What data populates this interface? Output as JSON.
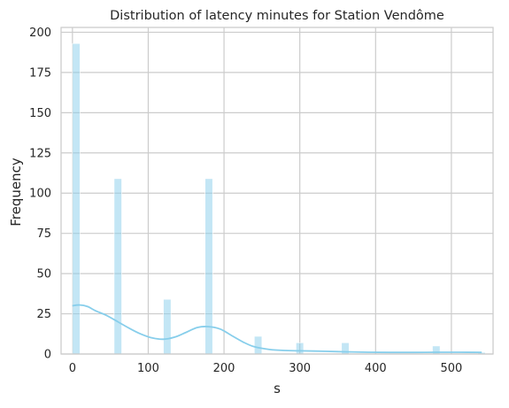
{
  "chart_data": {
    "type": "bar",
    "title": "Distribution of latency minutes for Station Vendôme",
    "xlabel": "s",
    "ylabel": "Frequency",
    "xlim": [
      -15,
      555
    ],
    "ylim": [
      0,
      203
    ],
    "xticks": [
      0,
      100,
      200,
      300,
      400,
      500
    ],
    "yticks": [
      0,
      25,
      50,
      75,
      100,
      125,
      150,
      175,
      200
    ],
    "grid": true,
    "bar_color": "#87CEEB",
    "kde_color": "#87CEEB",
    "bins": [
      {
        "x0": 0,
        "x1": 10,
        "count": 193
      },
      {
        "x0": 55,
        "x1": 65,
        "count": 109
      },
      {
        "x0": 120,
        "x1": 130,
        "count": 34
      },
      {
        "x0": 175,
        "x1": 185,
        "count": 109
      },
      {
        "x0": 240,
        "x1": 250,
        "count": 11
      },
      {
        "x0": 295,
        "x1": 305,
        "count": 7
      },
      {
        "x0": 355,
        "x1": 365,
        "count": 7
      },
      {
        "x0": 475,
        "x1": 485,
        "count": 5
      },
      {
        "x0": 535,
        "x1": 545,
        "count": 1
      }
    ],
    "kde": {
      "x": [
        0,
        10,
        20,
        30,
        45,
        60,
        75,
        90,
        105,
        120,
        135,
        150,
        165,
        180,
        195,
        210,
        225,
        240,
        260,
        280,
        300,
        330,
        360,
        390,
        420,
        450,
        480,
        510,
        540
      ],
      "y": [
        30,
        30.5,
        29.5,
        27,
        24,
        20,
        16,
        12.5,
        10,
        9.2,
        10.5,
        13.5,
        16.5,
        17,
        15.5,
        11.5,
        7.5,
        4.5,
        2.8,
        2.2,
        2.0,
        1.7,
        1.4,
        1.1,
        1.0,
        1.0,
        1.1,
        1.1,
        1.0
      ]
    }
  }
}
